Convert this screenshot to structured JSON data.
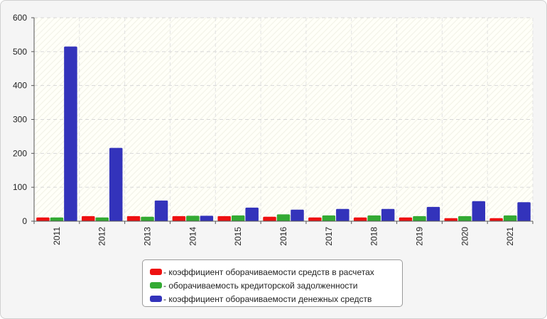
{
  "chart_data": {
    "type": "bar",
    "categories": [
      "2011",
      "2012",
      "2013",
      "2014",
      "2015",
      "2016",
      "2017",
      "2018",
      "2019",
      "2020",
      "2021"
    ],
    "series": [
      {
        "name": "- коэффициент оборачиваемости средств в расчетах",
        "color": "#ee1111",
        "values": [
          11,
          15,
          15,
          15,
          15,
          13,
          11,
          11,
          11,
          9,
          9
        ]
      },
      {
        "name": "- оборачиваемость кредиторской задолженности",
        "color": "#33aa33",
        "values": [
          11,
          11,
          13,
          16,
          17,
          20,
          17,
          17,
          15,
          15,
          17
        ]
      },
      {
        "name": "- коэффициент оборачиваемости денежных средств",
        "color": "#3333bb",
        "values": [
          515,
          216,
          61,
          16,
          40,
          34,
          36,
          36,
          42,
          59,
          56
        ]
      }
    ],
    "ylim": [
      0,
      600
    ],
    "yticks": [
      0,
      100,
      200,
      300,
      400,
      500,
      600
    ],
    "grid": true,
    "legend_position": "bottom"
  }
}
